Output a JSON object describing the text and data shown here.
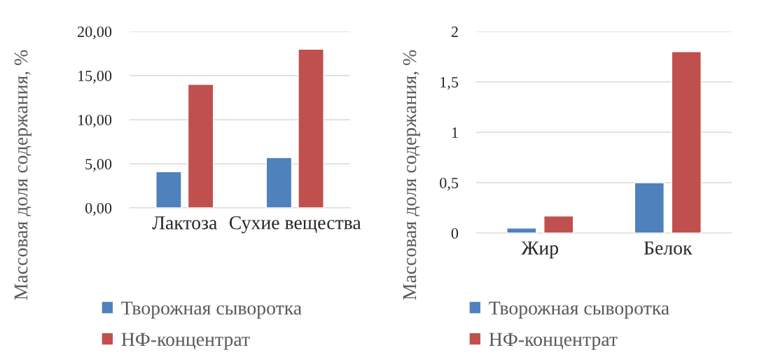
{
  "chart_data": [
    {
      "type": "bar",
      "categories": [
        "Лактоза",
        "Сухие вещества"
      ],
      "ylabel": "Массовая доля содержания, %",
      "series": [
        {
          "name": "Творожная сыворотка",
          "color": "#4f81bd",
          "values": [
            4.1,
            5.7
          ]
        },
        {
          "name": "НФ-концентрат",
          "color": "#c0504d",
          "values": [
            14.0,
            18.0
          ]
        }
      ],
      "ylim": [
        0,
        20
      ],
      "yticks": [
        {
          "value": 0,
          "label": "0,00"
        },
        {
          "value": 5,
          "label": "5,00"
        },
        {
          "value": 10,
          "label": "10,00"
        },
        {
          "value": 15,
          "label": "15,00"
        },
        {
          "value": 20,
          "label": "20,00"
        }
      ],
      "grid": "y",
      "legend": "bottom"
    },
    {
      "type": "bar",
      "categories": [
        "Жир",
        "Белок"
      ],
      "ylabel": "Массовая доля содержания, %",
      "series": [
        {
          "name": "Творожная сыворотка",
          "color": "#4f81bd",
          "values": [
            0.05,
            0.5
          ]
        },
        {
          "name": "НФ-концентрат",
          "color": "#c0504d",
          "values": [
            0.17,
            1.8
          ]
        }
      ],
      "ylim": [
        0,
        2
      ],
      "yticks": [
        0,
        {
          "value": 0.5,
          "label": "0,5"
        },
        1,
        {
          "value": 1.5,
          "label": "1,5"
        },
        2
      ],
      "grid": "y",
      "legend": "bottom"
    }
  ]
}
